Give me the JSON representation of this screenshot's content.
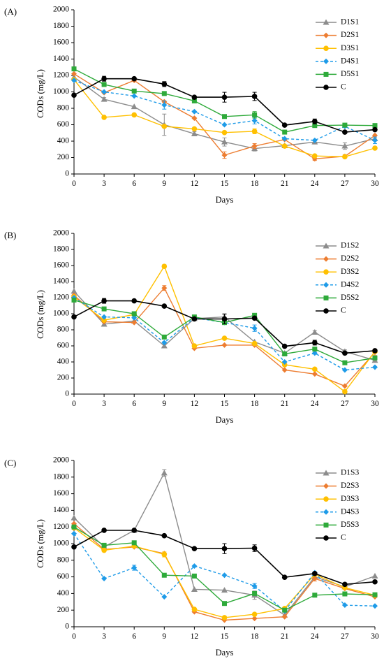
{
  "series_style": {
    "D1": {
      "color": "#8c8c8c",
      "marker": "triangle",
      "dash": false
    },
    "D2": {
      "color": "#ed7d31",
      "marker": "diamond",
      "dash": false
    },
    "D3": {
      "color": "#ffc000",
      "marker": "circle",
      "dash": false
    },
    "D4": {
      "color": "#1e9be8",
      "marker": "diamond",
      "dash": true
    },
    "D5": {
      "color": "#2eaa3a",
      "marker": "square",
      "dash": false
    },
    "C": {
      "color": "#000000",
      "marker": "circle",
      "dash": false
    }
  },
  "chart_data": [
    {
      "type": "line",
      "panel_label": "(A)",
      "xlabel": "Days",
      "ylabel": "CODs (mg/L)",
      "ylim": [
        0,
        2000
      ],
      "yticks": [
        0,
        200,
        400,
        600,
        800,
        1000,
        1200,
        1400,
        1600,
        1800,
        2000
      ],
      "x": [
        0,
        3,
        6,
        9,
        12,
        15,
        18,
        21,
        24,
        27,
        30
      ],
      "grid": false,
      "legend_position": "top-right",
      "series": [
        {
          "name": "D1S1",
          "style": "D1",
          "values": [
            1180,
            910,
            820,
            600,
            490,
            390,
            310,
            345,
            390,
            340,
            430
          ],
          "errors": [
            0,
            20,
            0,
            130,
            25,
            50,
            30,
            0,
            25,
            40,
            0
          ]
        },
        {
          "name": "D2S1",
          "style": "D2",
          "values": [
            1220,
            990,
            1140,
            880,
            680,
            230,
            340,
            420,
            185,
            215,
            470
          ],
          "errors": [
            0,
            0,
            0,
            0,
            0,
            40,
            30,
            0,
            20,
            20,
            0
          ]
        },
        {
          "name": "D3S1",
          "style": "D3",
          "values": [
            1150,
            690,
            720,
            580,
            550,
            505,
            520,
            340,
            220,
            210,
            315
          ],
          "errors": [
            0,
            0,
            0,
            0,
            0,
            0,
            30,
            0,
            0,
            0,
            0
          ]
        },
        {
          "name": "D4S1",
          "style": "D4",
          "values": [
            1140,
            1000,
            950,
            840,
            760,
            600,
            650,
            430,
            410,
            580,
            410
          ],
          "errors": [
            0,
            0,
            0,
            50,
            0,
            0,
            40,
            0,
            0,
            0,
            40
          ]
        },
        {
          "name": "D5S1",
          "style": "D5",
          "values": [
            1280,
            1090,
            1010,
            980,
            890,
            700,
            720,
            510,
            590,
            595,
            590
          ],
          "errors": [
            0,
            0,
            0,
            0,
            0,
            0,
            40,
            0,
            0,
            0,
            0
          ]
        },
        {
          "name": "C",
          "style": "C",
          "values": [
            960,
            1160,
            1160,
            1095,
            935,
            935,
            945,
            595,
            640,
            510,
            540
          ],
          "errors": [
            0,
            30,
            0,
            30,
            0,
            60,
            50,
            0,
            30,
            0,
            0
          ]
        }
      ]
    },
    {
      "type": "line",
      "panel_label": "(B)",
      "xlabel": "Days",
      "ylabel": "CODs (mg/L)",
      "ylim": [
        0,
        2000
      ],
      "yticks": [
        0,
        200,
        400,
        600,
        800,
        1000,
        1200,
        1400,
        1600,
        1800,
        2000
      ],
      "x": [
        0,
        3,
        6,
        9,
        12,
        15,
        18,
        21,
        24,
        27,
        30
      ],
      "grid": false,
      "legend_position": "top-right",
      "series": [
        {
          "name": "D1S2",
          "style": "D1",
          "values": [
            1280,
            870,
            910,
            600,
            940,
            960,
            650,
            510,
            770,
            530,
            420
          ],
          "errors": [
            0,
            20,
            0,
            20,
            0,
            40,
            0,
            0,
            20,
            20,
            0
          ]
        },
        {
          "name": "D2S2",
          "style": "D2",
          "values": [
            1230,
            900,
            890,
            1320,
            570,
            610,
            610,
            300,
            250,
            100,
            520
          ],
          "errors": [
            0,
            0,
            0,
            30,
            0,
            0,
            0,
            0,
            0,
            0,
            40
          ]
        },
        {
          "name": "D3S2",
          "style": "D3",
          "values": [
            1210,
            920,
            990,
            1590,
            600,
            695,
            630,
            365,
            310,
            30,
            530
          ],
          "errors": [
            0,
            0,
            0,
            20,
            0,
            0,
            0,
            0,
            0,
            0,
            0
          ]
        },
        {
          "name": "D4S2",
          "style": "D4",
          "values": [
            1200,
            960,
            950,
            640,
            950,
            890,
            820,
            400,
            510,
            300,
            335
          ],
          "errors": [
            0,
            0,
            0,
            0,
            0,
            0,
            40,
            0,
            0,
            0,
            0
          ]
        },
        {
          "name": "D5S2",
          "style": "D5",
          "values": [
            1170,
            1060,
            1000,
            710,
            960,
            890,
            980,
            500,
            560,
            390,
            450
          ],
          "errors": [
            0,
            0,
            0,
            0,
            0,
            0,
            0,
            0,
            0,
            0,
            0
          ]
        },
        {
          "name": "C",
          "style": "C",
          "values": [
            960,
            1160,
            1160,
            1095,
            935,
            935,
            945,
            595,
            640,
            510,
            540
          ],
          "errors": [
            0,
            30,
            0,
            0,
            0,
            60,
            0,
            0,
            30,
            0,
            0
          ]
        }
      ]
    },
    {
      "type": "line",
      "panel_label": "(C)",
      "xlabel": "Days",
      "ylabel": "CODs (mg/L)",
      "ylim": [
        0,
        2000
      ],
      "yticks": [
        0,
        200,
        400,
        600,
        800,
        1000,
        1200,
        1400,
        1600,
        1800,
        2000
      ],
      "x": [
        0,
        3,
        6,
        9,
        12,
        15,
        18,
        21,
        24,
        27,
        30
      ],
      "grid": false,
      "legend_position": "top-right",
      "series": [
        {
          "name": "D1S3",
          "style": "D1",
          "values": [
            1310,
            960,
            1160,
            1850,
            450,
            440,
            380,
            140,
            600,
            480,
            610
          ],
          "errors": [
            0,
            0,
            0,
            40,
            0,
            0,
            50,
            0,
            30,
            0,
            0
          ]
        },
        {
          "name": "D2S3",
          "style": "D2",
          "values": [
            1240,
            930,
            960,
            880,
            180,
            80,
            100,
            120,
            580,
            460,
            360
          ],
          "errors": [
            0,
            0,
            0,
            0,
            0,
            0,
            0,
            0,
            30,
            0,
            0
          ]
        },
        {
          "name": "D3S3",
          "style": "D3",
          "values": [
            1190,
            920,
            970,
            870,
            210,
            110,
            150,
            220,
            630,
            470,
            380
          ],
          "errors": [
            0,
            0,
            0,
            30,
            0,
            0,
            0,
            0,
            0,
            0,
            0
          ]
        },
        {
          "name": "D4S3",
          "style": "D4",
          "values": [
            1120,
            580,
            710,
            360,
            730,
            620,
            490,
            190,
            650,
            260,
            250
          ],
          "errors": [
            0,
            0,
            30,
            0,
            0,
            0,
            30,
            0,
            0,
            0,
            0
          ]
        },
        {
          "name": "D5S3",
          "style": "D5",
          "values": [
            1200,
            980,
            1010,
            620,
            610,
            280,
            400,
            200,
            380,
            395,
            385
          ],
          "errors": [
            0,
            0,
            0,
            0,
            0,
            0,
            0,
            0,
            0,
            0,
            0
          ]
        },
        {
          "name": "C",
          "style": "C",
          "values": [
            960,
            1160,
            1160,
            1095,
            940,
            940,
            945,
            595,
            640,
            510,
            540
          ],
          "errors": [
            0,
            0,
            0,
            0,
            0,
            60,
            40,
            0,
            0,
            0,
            0
          ]
        }
      ]
    }
  ]
}
